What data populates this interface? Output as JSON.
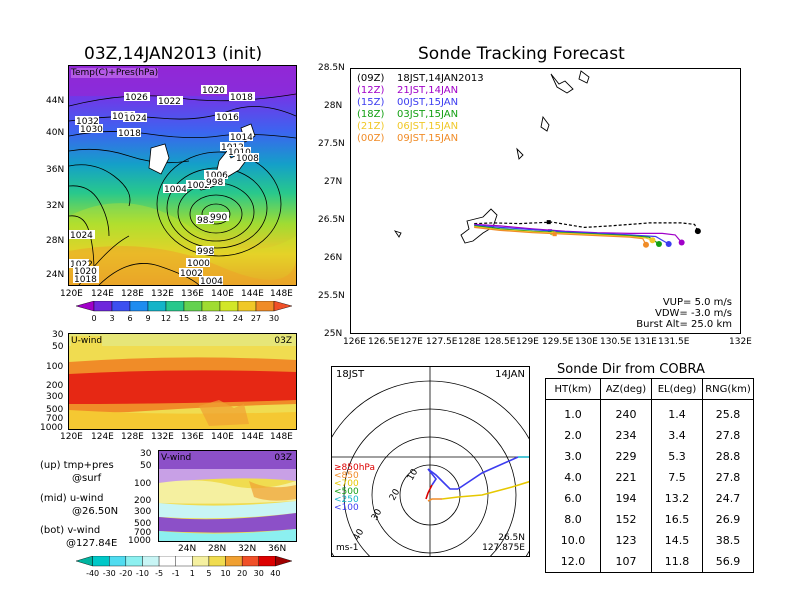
{
  "left_title": "03Z,14JAN2013 (init)",
  "right_title": "Sonde Tracking Forecast",
  "map_panel": {
    "label": "Temp(C)+Pres(hPa)",
    "y_ticks": [
      "44N",
      "40N",
      "36N",
      "32N",
      "28N",
      "24N"
    ],
    "x_ticks": [
      "120E",
      "124E",
      "128E",
      "132E",
      "136E",
      "140E",
      "144E",
      "148E"
    ],
    "isobar_labels": [
      "1026",
      "1022",
      "1020",
      "1018",
      "1028",
      "1024",
      "1032",
      "1030",
      "1018",
      "1016",
      "1014",
      "1012",
      "1010",
      "1008",
      "1006",
      "1004",
      "1002",
      "998",
      "986",
      "990",
      "998",
      "1000",
      "1002",
      "1004",
      "1024",
      "1022",
      "1020",
      "1018"
    ],
    "colorbar_ticks": [
      "0",
      "3",
      "6",
      "9",
      "12",
      "15",
      "18",
      "21",
      "24",
      "27",
      "30"
    ],
    "colorbar_colors": [
      "#a000c8",
      "#6e28dc",
      "#3c50f0",
      "#1e8cf0",
      "#14b4c8",
      "#28c88c",
      "#64d250",
      "#a0dc32",
      "#d2e628",
      "#f0c828",
      "#f08c28",
      "#f05028"
    ]
  },
  "uwind_panel": {
    "label": "U-wind",
    "time": "03Z",
    "y_ticks": [
      "30",
      "50",
      "100",
      "200",
      "300",
      "500",
      "700",
      "1000"
    ],
    "x_ticks": [
      "120E",
      "124E",
      "128E",
      "132E",
      "136E",
      "140E",
      "144E",
      "148E"
    ]
  },
  "vwind_panel": {
    "label": "V-wind",
    "time": "03Z",
    "y_ticks": [
      "30",
      "50",
      "100",
      "200",
      "300",
      "500",
      "700",
      "1000"
    ],
    "x_ticks": [
      "24N",
      "28N",
      "32N",
      "36N"
    ],
    "colorbar_ticks": [
      "-40",
      "-30",
      "-20",
      "-10",
      "-5",
      "-1",
      "1",
      "5",
      "10",
      "20",
      "30",
      "40"
    ],
    "colorbar_colors": [
      "#00b4a0",
      "#00c8c8",
      "#50dcf0",
      "#8cf0f0",
      "#c8f5f5",
      "#ffffff",
      "#ffffff",
      "#f5f0a0",
      "#f0dc50",
      "#f0a032",
      "#f05028",
      "#dc0000",
      "#a00000"
    ]
  },
  "legend_notes": [
    {
      "a": "(up) tmp+pres",
      "b": "@surf"
    },
    {
      "a": "(mid) u-wind",
      "b": "@26.50N"
    },
    {
      "a": "(bot) v-wind",
      "b": "@127.84E"
    }
  ],
  "track_panel": {
    "y_ticks": [
      "28.5N",
      "28N",
      "27.5N",
      "27N",
      "26.5N",
      "26N",
      "25.5N",
      "25N"
    ],
    "x_ticks": [
      "126E",
      "126.5E",
      "127E",
      "127.5E",
      "128E",
      "128.5E",
      "129E",
      "129.5E",
      "130E",
      "130.5E",
      "131E",
      "131.5E",
      "132E"
    ],
    "legend": [
      {
        "run": "(09Z)",
        "time": "18JST,14JAN2013",
        "color": "#000000"
      },
      {
        "run": "(12Z)",
        "time": "21JST,14JAN",
        "color": "#a000c8"
      },
      {
        "run": "(15Z)",
        "time": "00JST,15JAN",
        "color": "#3c3cf0"
      },
      {
        "run": "(18Z)",
        "time": "03JST,15JAN",
        "color": "#14a014"
      },
      {
        "run": "(21Z)",
        "time": "06JST,15JAN",
        "color": "#f0c828"
      },
      {
        "run": "(00Z)",
        "time": "09JST,15JAN",
        "color": "#f08c28"
      }
    ],
    "params": [
      "VUP= 5.0 m/s",
      "VDW= -3.0 m/s",
      "Burst Alt= 25.0 km"
    ]
  },
  "polar_panel": {
    "time_left": "18JST",
    "date_right": "14JAN",
    "ring_labels": [
      "10",
      "20",
      "30",
      "40"
    ],
    "unit": "ms-1",
    "loc_lat": "26.5N",
    "loc_lon": "127.875E",
    "levels": [
      {
        "label": "≥850hPa",
        "color": "#dc0000"
      },
      {
        "label": "<850",
        "color": "#f08c28"
      },
      {
        "label": "<700",
        "color": "#e6c800"
      },
      {
        "label": "<500",
        "color": "#14a014"
      },
      {
        "label": "<250",
        "color": "#14b4c8"
      },
      {
        "label": "<100",
        "color": "#3c3cf0"
      }
    ]
  },
  "sonde_dir": {
    "title": "Sonde Dir from COBRA",
    "headers": [
      "HT(km)",
      "AZ(deg)",
      "EL(deg)",
      "RNG(km)"
    ],
    "rows": [
      [
        "1.0",
        "240",
        "1.4",
        "25.8"
      ],
      [
        "2.0",
        "234",
        "3.4",
        "27.8"
      ],
      [
        "3.0",
        "229",
        "5.3",
        "28.8"
      ],
      [
        "4.0",
        "221",
        "7.5",
        "27.8"
      ],
      [
        "6.0",
        "194",
        "13.2",
        "24.7"
      ],
      [
        "8.0",
        "152",
        "16.5",
        "26.9"
      ],
      [
        "10.0",
        "123",
        "14.5",
        "38.5"
      ],
      [
        "12.0",
        "107",
        "11.8",
        "56.9"
      ]
    ]
  },
  "chart_data": [
    {
      "type": "heatmap",
      "title": "03Z,14JAN2013 (init)",
      "label": "Temp(C)+Pres(hPa)",
      "xlim": [
        120,
        150
      ],
      "ylim": [
        22,
        47
      ]
    },
    {
      "type": "heatmap",
      "label": "U-wind",
      "time": "03Z",
      "xlim": [
        120,
        150
      ],
      "ylim": [
        1000,
        30
      ]
    },
    {
      "type": "heatmap",
      "label": "V-wind",
      "time": "03Z",
      "xlim": [
        21,
        39
      ],
      "ylim": [
        1000,
        30
      ]
    },
    {
      "type": "line",
      "title": "Sonde Tracking Forecast",
      "xlim": [
        126,
        132
      ],
      "ylim": [
        25,
        28.5
      ],
      "series": [
        {
          "name": "(09Z) 18JST,14JAN2013",
          "x": [
            127.9,
            128.2,
            128.6,
            129.1,
            129.6,
            130.0,
            130.6,
            131.1,
            131.3,
            131.35
          ],
          "y": [
            26.45,
            26.46,
            26.45,
            26.47,
            26.4,
            26.42,
            26.46,
            26.46,
            26.44,
            26.35
          ]
        },
        {
          "name": "(12Z) 21JST,14JAN",
          "x": [
            127.9,
            128.3,
            128.8,
            129.3,
            129.8,
            130.3,
            130.8,
            131.0,
            131.1
          ],
          "y": [
            26.44,
            26.42,
            26.38,
            26.35,
            26.33,
            26.32,
            26.32,
            26.3,
            26.2
          ]
        },
        {
          "name": "(15Z) 00JST,15JAN",
          "x": [
            127.9,
            128.3,
            128.8,
            129.3,
            129.8,
            130.3,
            130.7,
            130.9
          ],
          "y": [
            26.43,
            26.4,
            26.37,
            26.34,
            26.32,
            26.3,
            26.28,
            26.18
          ]
        },
        {
          "name": "(18Z) 03JST,15JAN",
          "x": [
            127.9,
            128.3,
            128.8,
            129.3,
            129.8,
            130.3,
            130.6,
            130.75
          ],
          "y": [
            26.42,
            26.38,
            26.35,
            26.33,
            26.31,
            26.29,
            26.27,
            26.18
          ]
        },
        {
          "name": "(21Z) 06JST,15JAN",
          "x": [
            127.9,
            128.3,
            128.8,
            129.3,
            129.8,
            130.3,
            130.55,
            130.65
          ],
          "y": [
            26.41,
            26.37,
            26.34,
            26.32,
            26.3,
            26.28,
            26.26,
            26.23
          ]
        },
        {
          "name": "(00Z) 09JST,15JAN",
          "x": [
            127.9,
            128.3,
            128.8,
            129.3,
            129.8,
            130.3,
            130.5,
            130.55
          ],
          "y": [
            26.4,
            26.36,
            26.33,
            26.31,
            26.29,
            26.27,
            26.25,
            26.17
          ]
        }
      ]
    },
    {
      "type": "line",
      "title": "Sonde Dir from COBRA",
      "label": "wind hodograph",
      "ring_labels": [
        "10",
        "20",
        "30",
        "40"
      ]
    }
  ]
}
